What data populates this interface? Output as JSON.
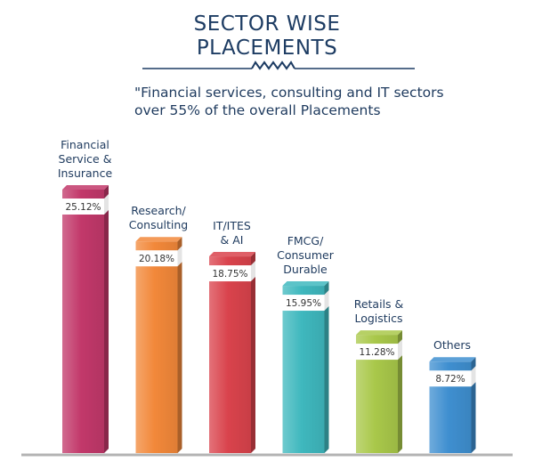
{
  "title": {
    "line1": "SECTOR WISE",
    "line2": "PLACEMENTS"
  },
  "subtitle": {
    "line1": "\"Financial services, consulting and IT sectors",
    "line2": "over 55% of the overall Placements"
  },
  "colors": {
    "title": "#1d3c63",
    "divider": "#1d3c63",
    "axis": "#b3b3b3"
  },
  "chart_data": {
    "type": "bar",
    "title": "SECTOR WISE PLACEMENTS",
    "categories": [
      [
        "Financial",
        "Service &",
        "Insurance"
      ],
      [
        "Research/",
        "Consulting"
      ],
      [
        "IT/ITES",
        "& AI"
      ],
      [
        "FMCG/",
        "Consumer",
        "Durable"
      ],
      [
        "Retails &",
        "Logistics"
      ],
      [
        "Others"
      ]
    ],
    "values": [
      25.12,
      20.18,
      18.75,
      15.95,
      11.28,
      8.72
    ],
    "value_labels": [
      "25.12%",
      "20.18%",
      "18.75%",
      "15.95%",
      "11.28%",
      "8.72%"
    ],
    "colors": [
      "#c2386a",
      "#f2883a",
      "#d9434c",
      "#3fb8be",
      "#a9c84a",
      "#3f8fd0"
    ],
    "ylim": [
      0,
      30
    ],
    "grid": false,
    "xlabel": "",
    "ylabel": ""
  }
}
